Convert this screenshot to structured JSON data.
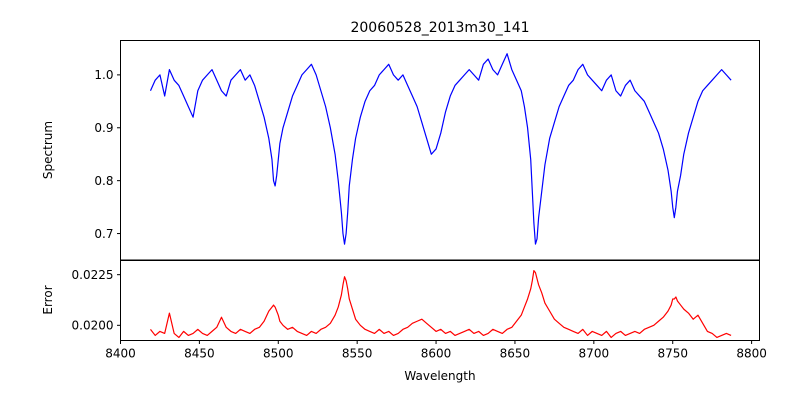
{
  "chart_data": [
    {
      "type": "line",
      "panel": "top",
      "title": "20060528_2013m30_141",
      "xlabel": "",
      "ylabel": "Spectrum",
      "xlim": [
        8400,
        8805
      ],
      "ylim": [
        0.65,
        1.065
      ],
      "yticks": [
        0.7,
        0.8,
        0.9,
        1.0
      ],
      "ytick_labels": [
        "0.7",
        "0.8",
        "0.9",
        "1.0"
      ],
      "grid": false,
      "series": [
        {
          "name": "Spectrum",
          "color": "#0000ff",
          "x": [
            8419,
            8422,
            8425,
            8428,
            8431,
            8434,
            8437,
            8440,
            8443,
            8446,
            8449,
            8452,
            8455,
            8458,
            8461,
            8464,
            8467,
            8470,
            8473,
            8476,
            8479,
            8482,
            8485,
            8488,
            8491,
            8494,
            8496,
            8497,
            8498,
            8499,
            8500,
            8501,
            8503,
            8506,
            8509,
            8512,
            8515,
            8518,
            8521,
            8524,
            8527,
            8530,
            8533,
            8536,
            8538,
            8540,
            8541,
            8542,
            8543,
            8544,
            8545,
            8547,
            8549,
            8552,
            8555,
            8558,
            8561,
            8564,
            8567,
            8570,
            8573,
            8576,
            8579,
            8582,
            8585,
            8588,
            8591,
            8594,
            8597,
            8600,
            8603,
            8606,
            8609,
            8612,
            8615,
            8618,
            8621,
            8624,
            8627,
            8630,
            8633,
            8636,
            8639,
            8642,
            8645,
            8648,
            8651,
            8654,
            8656,
            8658,
            8660,
            8661,
            8662,
            8663,
            8664,
            8665,
            8667,
            8669,
            8672,
            8675,
            8678,
            8681,
            8684,
            8687,
            8690,
            8693,
            8696,
            8699,
            8702,
            8705,
            8708,
            8711,
            8714,
            8717,
            8720,
            8723,
            8726,
            8729,
            8732,
            8735,
            8738,
            8741,
            8744,
            8747,
            8749,
            8750,
            8751,
            8752,
            8753,
            8755,
            8757,
            8760,
            8763,
            8766,
            8769,
            8772,
            8775,
            8778,
            8781,
            8784,
            8787
          ],
          "y": [
            0.97,
            0.99,
            1.0,
            0.96,
            1.01,
            0.99,
            0.98,
            0.96,
            0.94,
            0.92,
            0.97,
            0.99,
            1.0,
            1.01,
            0.99,
            0.97,
            0.96,
            0.99,
            1.0,
            1.01,
            0.99,
            1.0,
            0.98,
            0.95,
            0.92,
            0.88,
            0.84,
            0.8,
            0.79,
            0.81,
            0.84,
            0.87,
            0.9,
            0.93,
            0.96,
            0.98,
            1.0,
            1.01,
            1.02,
            1.0,
            0.97,
            0.94,
            0.9,
            0.85,
            0.8,
            0.74,
            0.7,
            0.68,
            0.7,
            0.74,
            0.79,
            0.84,
            0.88,
            0.92,
            0.95,
            0.97,
            0.98,
            1.0,
            1.01,
            1.02,
            1.0,
            0.99,
            1.0,
            0.98,
            0.96,
            0.94,
            0.91,
            0.88,
            0.85,
            0.86,
            0.89,
            0.93,
            0.96,
            0.98,
            0.99,
            1.0,
            1.01,
            1.0,
            0.99,
            1.02,
            1.03,
            1.01,
            1.0,
            1.02,
            1.04,
            1.01,
            0.99,
            0.97,
            0.94,
            0.9,
            0.84,
            0.78,
            0.72,
            0.68,
            0.69,
            0.73,
            0.78,
            0.83,
            0.88,
            0.91,
            0.94,
            0.96,
            0.98,
            0.99,
            1.01,
            1.02,
            1.0,
            0.99,
            0.98,
            0.97,
            0.99,
            1.0,
            0.97,
            0.96,
            0.98,
            0.99,
            0.97,
            0.96,
            0.95,
            0.93,
            0.91,
            0.89,
            0.86,
            0.82,
            0.78,
            0.75,
            0.73,
            0.75,
            0.78,
            0.81,
            0.85,
            0.89,
            0.92,
            0.95,
            0.97,
            0.98,
            0.99,
            1.0,
            1.01,
            1.0,
            0.99
          ]
        }
      ]
    },
    {
      "type": "line",
      "panel": "bottom",
      "title": "",
      "xlabel": "Wavelength",
      "ylabel": "Error",
      "xlim": [
        8400,
        8805
      ],
      "ylim": [
        0.01925,
        0.0232
      ],
      "xticks": [
        8400,
        8450,
        8500,
        8550,
        8600,
        8650,
        8700,
        8750,
        8800
      ],
      "xtick_labels": [
        "8400",
        "8450",
        "8500",
        "8550",
        "8600",
        "8650",
        "8700",
        "8750",
        "8800"
      ],
      "yticks": [
        0.02,
        0.0225
      ],
      "ytick_labels": [
        "0.0200",
        "0.0225"
      ],
      "grid": false,
      "series": [
        {
          "name": "Error",
          "color": "#ff0000",
          "x": [
            8419,
            8422,
            8425,
            8428,
            8431,
            8434,
            8437,
            8440,
            8443,
            8446,
            8449,
            8452,
            8455,
            8458,
            8461,
            8464,
            8467,
            8470,
            8473,
            8476,
            8479,
            8482,
            8485,
            8488,
            8491,
            8494,
            8496,
            8497,
            8498,
            8499,
            8500,
            8501,
            8503,
            8506,
            8509,
            8512,
            8515,
            8518,
            8521,
            8524,
            8527,
            8530,
            8533,
            8536,
            8538,
            8540,
            8541,
            8542,
            8543,
            8544,
            8545,
            8547,
            8549,
            8552,
            8555,
            8558,
            8561,
            8564,
            8567,
            8570,
            8573,
            8576,
            8579,
            8582,
            8585,
            8588,
            8591,
            8594,
            8597,
            8600,
            8603,
            8606,
            8609,
            8612,
            8615,
            8618,
            8621,
            8624,
            8627,
            8630,
            8633,
            8636,
            8639,
            8642,
            8645,
            8648,
            8651,
            8654,
            8656,
            8658,
            8660,
            8661,
            8662,
            8663,
            8664,
            8665,
            8667,
            8669,
            8672,
            8675,
            8678,
            8681,
            8684,
            8687,
            8690,
            8693,
            8696,
            8699,
            8702,
            8705,
            8708,
            8711,
            8714,
            8717,
            8720,
            8723,
            8726,
            8729,
            8732,
            8735,
            8738,
            8741,
            8744,
            8747,
            8749,
            8750,
            8751,
            8752,
            8753,
            8755,
            8757,
            8760,
            8763,
            8766,
            8769,
            8772,
            8775,
            8778,
            8781,
            8784,
            8787
          ],
          "y": [
            0.0198,
            0.0195,
            0.0197,
            0.0196,
            0.0206,
            0.0196,
            0.0194,
            0.0197,
            0.0195,
            0.0196,
            0.0198,
            0.0196,
            0.0195,
            0.0197,
            0.0199,
            0.0204,
            0.0199,
            0.0197,
            0.0196,
            0.0198,
            0.0197,
            0.0196,
            0.0198,
            0.0199,
            0.0202,
            0.0207,
            0.0209,
            0.021,
            0.0209,
            0.0207,
            0.0205,
            0.0202,
            0.02,
            0.0198,
            0.0199,
            0.0197,
            0.0196,
            0.0195,
            0.0197,
            0.0196,
            0.0198,
            0.0199,
            0.0201,
            0.0205,
            0.0209,
            0.0215,
            0.022,
            0.0224,
            0.0222,
            0.0218,
            0.0213,
            0.0208,
            0.0203,
            0.02,
            0.0198,
            0.0197,
            0.0196,
            0.0198,
            0.0196,
            0.0197,
            0.0195,
            0.0196,
            0.0198,
            0.0199,
            0.0201,
            0.0202,
            0.0203,
            0.0201,
            0.0199,
            0.0197,
            0.0198,
            0.0196,
            0.0197,
            0.0195,
            0.0196,
            0.0197,
            0.0198,
            0.0196,
            0.0197,
            0.0195,
            0.0196,
            0.0198,
            0.0197,
            0.0196,
            0.0198,
            0.0199,
            0.0202,
            0.0205,
            0.0209,
            0.0213,
            0.0218,
            0.0222,
            0.0227,
            0.0226,
            0.0223,
            0.022,
            0.0216,
            0.0211,
            0.0207,
            0.0203,
            0.0201,
            0.0199,
            0.0198,
            0.0197,
            0.0196,
            0.0198,
            0.0195,
            0.0197,
            0.0196,
            0.0195,
            0.0197,
            0.0194,
            0.0196,
            0.0197,
            0.0195,
            0.0196,
            0.0197,
            0.0196,
            0.0198,
            0.0199,
            0.02,
            0.0202,
            0.0204,
            0.0207,
            0.021,
            0.0213,
            0.0213,
            0.0214,
            0.0212,
            0.021,
            0.0208,
            0.0206,
            0.0203,
            0.0205,
            0.0201,
            0.0197,
            0.0196,
            0.0194,
            0.0195,
            0.0196,
            0.0195
          ]
        }
      ]
    }
  ]
}
